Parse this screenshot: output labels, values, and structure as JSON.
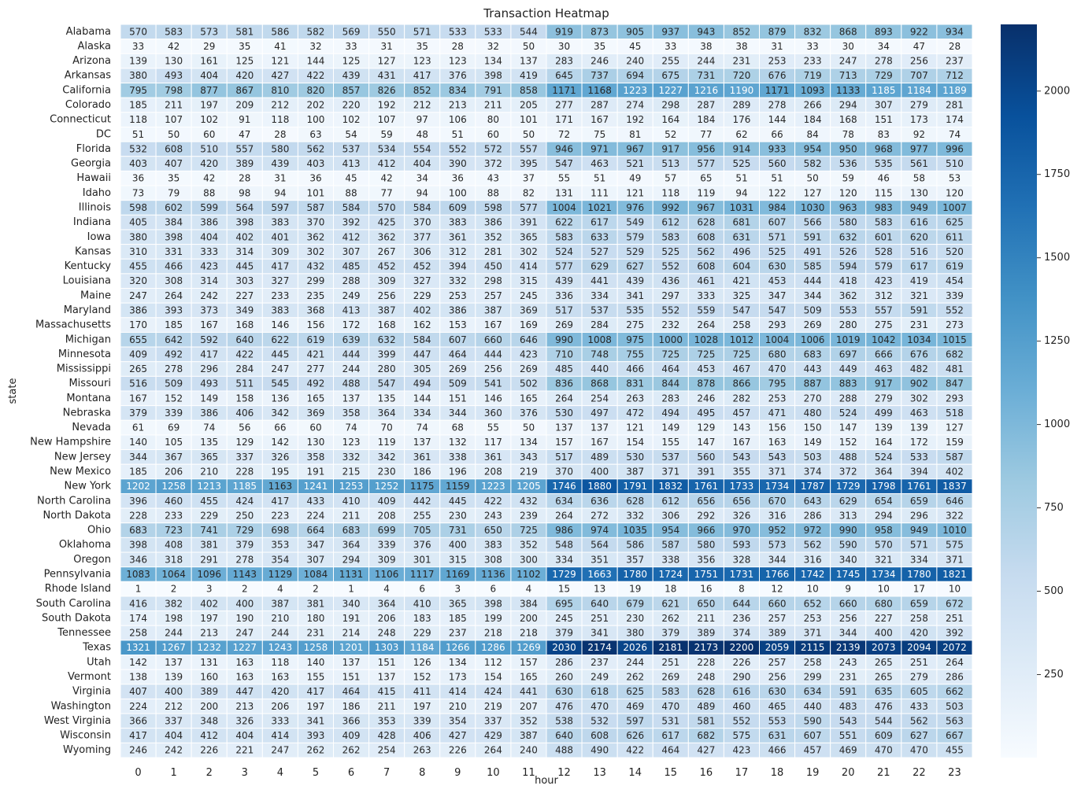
{
  "chart_data": {
    "type": "heatmap",
    "title": "Transaction Heatmap",
    "xlabel": "hour",
    "ylabel": "state",
    "x": [
      "0",
      "1",
      "2",
      "3",
      "4",
      "5",
      "6",
      "7",
      "8",
      "9",
      "10",
      "11",
      "12",
      "13",
      "14",
      "15",
      "16",
      "17",
      "18",
      "19",
      "20",
      "21",
      "22",
      "23"
    ],
    "y": [
      "Alabama",
      "Alaska",
      "Arizona",
      "Arkansas",
      "California",
      "Colorado",
      "Connecticut",
      "DC",
      "Florida",
      "Georgia",
      "Hawaii",
      "Idaho",
      "Illinois",
      "Indiana",
      "Iowa",
      "Kansas",
      "Kentucky",
      "Louisiana",
      "Maine",
      "Maryland",
      "Massachusetts",
      "Michigan",
      "Minnesota",
      "Mississippi",
      "Missouri",
      "Montana",
      "Nebraska",
      "Nevada",
      "New Hampshire",
      "New Jersey",
      "New Mexico",
      "New York",
      "North Carolina",
      "North Dakota",
      "Ohio",
      "Oklahoma",
      "Oregon",
      "Pennsylvania",
      "Rhode Island",
      "South Carolina",
      "South Dakota",
      "Tennessee",
      "Texas",
      "Utah",
      "Vermont",
      "Virginia",
      "Washington",
      "West Virginia",
      "Wisconsin",
      "Wyoming"
    ],
    "values": [
      [
        570,
        583,
        573,
        581,
        586,
        582,
        569,
        550,
        571,
        533,
        533,
        544,
        919,
        873,
        905,
        937,
        943,
        852,
        879,
        832,
        868,
        893,
        922,
        934
      ],
      [
        33,
        42,
        29,
        35,
        41,
        32,
        33,
        31,
        35,
        28,
        32,
        50,
        30,
        35,
        45,
        33,
        38,
        38,
        31,
        33,
        30,
        34,
        47,
        28
      ],
      [
        139,
        130,
        161,
        125,
        121,
        144,
        125,
        127,
        123,
        123,
        134,
        137,
        283,
        246,
        240,
        255,
        244,
        231,
        253,
        233,
        247,
        278,
        256,
        237
      ],
      [
        380,
        493,
        404,
        420,
        427,
        422,
        439,
        431,
        417,
        376,
        398,
        419,
        645,
        737,
        694,
        675,
        731,
        720,
        676,
        719,
        713,
        729,
        707,
        712
      ],
      [
        795,
        798,
        877,
        867,
        810,
        820,
        857,
        826,
        852,
        834,
        791,
        858,
        1171,
        1168,
        1223,
        1227,
        1216,
        1190,
        1171,
        1093,
        1133,
        1185,
        1184,
        1189
      ],
      [
        185,
        211,
        197,
        209,
        212,
        202,
        220,
        192,
        212,
        213,
        211,
        205,
        277,
        287,
        274,
        298,
        287,
        289,
        278,
        266,
        294,
        307,
        279,
        281
      ],
      [
        118,
        107,
        102,
        91,
        118,
        100,
        102,
        107,
        97,
        106,
        80,
        101,
        171,
        167,
        192,
        164,
        184,
        176,
        144,
        184,
        168,
        151,
        173,
        174
      ],
      [
        51,
        50,
        60,
        47,
        28,
        63,
        54,
        59,
        48,
        51,
        60,
        50,
        72,
        75,
        81,
        52,
        77,
        62,
        66,
        84,
        78,
        83,
        92,
        74
      ],
      [
        532,
        608,
        510,
        557,
        580,
        562,
        537,
        534,
        554,
        552,
        572,
        557,
        946,
        971,
        967,
        917,
        956,
        914,
        933,
        954,
        950,
        968,
        977,
        996
      ],
      [
        403,
        407,
        420,
        389,
        439,
        403,
        413,
        412,
        404,
        390,
        372,
        395,
        547,
        463,
        521,
        513,
        577,
        525,
        560,
        582,
        536,
        535,
        561,
        510
      ],
      [
        36,
        35,
        42,
        28,
        31,
        36,
        45,
        42,
        34,
        36,
        43,
        37,
        55,
        51,
        49,
        57,
        65,
        51,
        51,
        50,
        59,
        46,
        58,
        53
      ],
      [
        73,
        79,
        88,
        98,
        94,
        101,
        88,
        77,
        94,
        100,
        88,
        82,
        131,
        111,
        121,
        118,
        119,
        94,
        122,
        127,
        120,
        115,
        130,
        120
      ],
      [
        598,
        602,
        599,
        564,
        597,
        587,
        584,
        570,
        584,
        609,
        598,
        577,
        1004,
        1021,
        976,
        992,
        967,
        1031,
        984,
        1030,
        963,
        983,
        949,
        1007
      ],
      [
        405,
        384,
        386,
        398,
        383,
        370,
        392,
        425,
        370,
        383,
        386,
        391,
        622,
        617,
        549,
        612,
        628,
        681,
        607,
        566,
        580,
        583,
        616,
        625
      ],
      [
        380,
        398,
        404,
        402,
        401,
        362,
        412,
        362,
        377,
        361,
        352,
        365,
        583,
        633,
        579,
        583,
        608,
        631,
        571,
        591,
        632,
        601,
        620,
        611
      ],
      [
        310,
        331,
        333,
        314,
        309,
        302,
        307,
        267,
        306,
        312,
        281,
        302,
        524,
        527,
        529,
        525,
        562,
        496,
        525,
        491,
        526,
        528,
        516,
        520
      ],
      [
        455,
        466,
        423,
        445,
        417,
        432,
        485,
        452,
        452,
        394,
        450,
        414,
        577,
        629,
        627,
        552,
        608,
        604,
        630,
        585,
        594,
        579,
        617,
        619
      ],
      [
        320,
        308,
        314,
        303,
        327,
        299,
        288,
        309,
        327,
        332,
        298,
        315,
        439,
        441,
        439,
        436,
        461,
        421,
        453,
        444,
        418,
        423,
        419,
        454
      ],
      [
        247,
        264,
        242,
        227,
        233,
        235,
        249,
        256,
        229,
        253,
        257,
        245,
        336,
        334,
        341,
        297,
        333,
        325,
        347,
        344,
        362,
        312,
        321,
        339
      ],
      [
        386,
        393,
        373,
        349,
        383,
        368,
        413,
        387,
        402,
        386,
        387,
        369,
        517,
        537,
        535,
        552,
        559,
        547,
        547,
        509,
        553,
        557,
        591,
        552
      ],
      [
        170,
        185,
        167,
        168,
        146,
        156,
        172,
        168,
        162,
        153,
        167,
        169,
        269,
        284,
        275,
        232,
        264,
        258,
        293,
        269,
        280,
        275,
        231,
        273
      ],
      [
        655,
        642,
        592,
        640,
        622,
        619,
        639,
        632,
        584,
        607,
        660,
        646,
        990,
        1008,
        975,
        1000,
        1028,
        1012,
        1004,
        1006,
        1019,
        1042,
        1034,
        1015
      ],
      [
        409,
        492,
        417,
        422,
        445,
        421,
        444,
        399,
        447,
        464,
        444,
        423,
        710,
        748,
        755,
        725,
        725,
        725,
        680,
        683,
        697,
        666,
        676,
        682
      ],
      [
        265,
        278,
        296,
        284,
        247,
        277,
        244,
        280,
        305,
        269,
        256,
        269,
        485,
        440,
        466,
        464,
        453,
        467,
        470,
        443,
        449,
        463,
        482,
        481
      ],
      [
        516,
        509,
        493,
        511,
        545,
        492,
        488,
        547,
        494,
        509,
        541,
        502,
        836,
        868,
        831,
        844,
        878,
        866,
        795,
        887,
        883,
        917,
        902,
        847
      ],
      [
        167,
        152,
        149,
        158,
        136,
        165,
        137,
        135,
        144,
        151,
        146,
        165,
        264,
        254,
        263,
        283,
        246,
        282,
        253,
        270,
        288,
        279,
        302,
        293
      ],
      [
        379,
        339,
        386,
        406,
        342,
        369,
        358,
        364,
        334,
        344,
        360,
        376,
        530,
        497,
        472,
        494,
        495,
        457,
        471,
        480,
        524,
        499,
        463,
        518
      ],
      [
        61,
        69,
        74,
        56,
        66,
        60,
        74,
        70,
        74,
        68,
        55,
        50,
        137,
        137,
        121,
        149,
        129,
        143,
        156,
        150,
        147,
        139,
        139,
        127
      ],
      [
        140,
        105,
        135,
        129,
        142,
        130,
        123,
        119,
        137,
        132,
        117,
        134,
        157,
        167,
        154,
        155,
        147,
        167,
        163,
        149,
        152,
        164,
        172,
        159
      ],
      [
        344,
        367,
        365,
        337,
        326,
        358,
        332,
        342,
        361,
        338,
        361,
        343,
        517,
        489,
        530,
        537,
        560,
        543,
        543,
        503,
        488,
        524,
        533,
        587
      ],
      [
        185,
        206,
        210,
        228,
        195,
        191,
        215,
        230,
        186,
        196,
        208,
        219,
        370,
        400,
        387,
        371,
        391,
        355,
        371,
        374,
        372,
        364,
        394,
        402
      ],
      [
        1202,
        1258,
        1213,
        1185,
        1163,
        1241,
        1253,
        1252,
        1175,
        1159,
        1223,
        1205,
        1746,
        1880,
        1791,
        1832,
        1761,
        1733,
        1734,
        1787,
        1729,
        1798,
        1761,
        1837
      ],
      [
        396,
        460,
        455,
        424,
        417,
        433,
        410,
        409,
        442,
        445,
        422,
        432,
        634,
        636,
        628,
        612,
        656,
        656,
        670,
        643,
        629,
        654,
        659,
        646
      ],
      [
        228,
        233,
        229,
        250,
        223,
        224,
        211,
        208,
        255,
        230,
        243,
        239,
        264,
        272,
        332,
        306,
        292,
        326,
        316,
        286,
        313,
        294,
        296,
        322
      ],
      [
        683,
        723,
        741,
        729,
        698,
        664,
        683,
        699,
        705,
        731,
        650,
        725,
        986,
        974,
        1035,
        954,
        966,
        970,
        952,
        972,
        990,
        958,
        949,
        1010
      ],
      [
        398,
        408,
        381,
        379,
        353,
        347,
        364,
        339,
        376,
        400,
        383,
        352,
        548,
        564,
        586,
        587,
        580,
        593,
        573,
        562,
        590,
        570,
        571,
        575
      ],
      [
        346,
        318,
        291,
        278,
        354,
        307,
        294,
        309,
        301,
        315,
        308,
        300,
        334,
        351,
        357,
        338,
        356,
        328,
        344,
        316,
        340,
        321,
        334,
        371
      ],
      [
        1083,
        1064,
        1096,
        1143,
        1129,
        1084,
        1131,
        1106,
        1117,
        1169,
        1136,
        1102,
        1729,
        1663,
        1780,
        1724,
        1751,
        1731,
        1766,
        1742,
        1745,
        1734,
        1780,
        1821
      ],
      [
        1,
        2,
        3,
        2,
        4,
        2,
        1,
        4,
        6,
        3,
        6,
        4,
        15,
        13,
        19,
        18,
        16,
        8,
        12,
        10,
        9,
        10,
        17,
        10
      ],
      [
        416,
        382,
        402,
        400,
        387,
        381,
        340,
        364,
        410,
        365,
        398,
        384,
        695,
        640,
        679,
        621,
        650,
        644,
        660,
        652,
        660,
        680,
        659,
        672
      ],
      [
        174,
        198,
        197,
        190,
        210,
        180,
        191,
        206,
        183,
        185,
        199,
        200,
        245,
        251,
        230,
        262,
        211,
        236,
        257,
        253,
        256,
        227,
        258,
        251
      ],
      [
        258,
        244,
        213,
        247,
        244,
        231,
        214,
        248,
        229,
        237,
        218,
        218,
        379,
        341,
        380,
        379,
        389,
        374,
        389,
        371,
        344,
        400,
        420,
        392
      ],
      [
        1321,
        1267,
        1232,
        1227,
        1243,
        1258,
        1201,
        1303,
        1184,
        1266,
        1286,
        1269,
        2030,
        2174,
        2026,
        2181,
        2173,
        2200,
        2059,
        2115,
        2139,
        2073,
        2094,
        2072
      ],
      [
        142,
        137,
        131,
        163,
        118,
        140,
        137,
        151,
        126,
        134,
        112,
        157,
        286,
        237,
        244,
        251,
        228,
        226,
        257,
        258,
        243,
        265,
        251,
        264
      ],
      [
        138,
        139,
        160,
        163,
        163,
        155,
        151,
        137,
        152,
        173,
        154,
        165,
        260,
        249,
        262,
        269,
        248,
        290,
        256,
        299,
        231,
        265,
        279,
        286
      ],
      [
        407,
        400,
        389,
        447,
        420,
        417,
        464,
        415,
        411,
        414,
        424,
        441,
        630,
        618,
        625,
        583,
        628,
        616,
        630,
        634,
        591,
        635,
        605,
        662
      ],
      [
        224,
        212,
        200,
        213,
        206,
        197,
        186,
        211,
        197,
        210,
        219,
        207,
        476,
        470,
        469,
        470,
        489,
        460,
        465,
        440,
        483,
        476,
        433,
        503
      ],
      [
        366,
        337,
        348,
        326,
        333,
        341,
        366,
        353,
        339,
        354,
        337,
        352,
        538,
        532,
        597,
        531,
        581,
        552,
        553,
        590,
        543,
        544,
        562,
        563
      ],
      [
        417,
        404,
        412,
        404,
        414,
        393,
        409,
        428,
        406,
        427,
        429,
        387,
        640,
        608,
        626,
        617,
        682,
        575,
        631,
        607,
        551,
        609,
        627,
        667
      ],
      [
        246,
        242,
        226,
        221,
        247,
        262,
        262,
        254,
        263,
        226,
        264,
        240,
        488,
        490,
        422,
        464,
        427,
        423,
        466,
        457,
        469,
        470,
        470,
        455
      ]
    ],
    "colorbar": {
      "ticks": [
        250,
        500,
        750,
        1000,
        1250,
        1500,
        1750,
        2000
      ],
      "vmin": 1,
      "vmax": 2200,
      "colormap": "Blues"
    },
    "grid": false
  }
}
